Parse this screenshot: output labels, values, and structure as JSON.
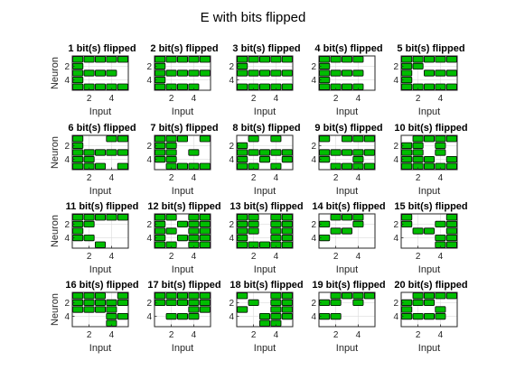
{
  "figure": {
    "title": "E with bits flipped"
  },
  "colors": {
    "cell_fill": "#00bd00",
    "cell_stroke": "#000000",
    "background": "#ffffff"
  },
  "chart_data": [
    {
      "type": "heatmap",
      "title": "1 bit(s) flipped",
      "xlabel": "Input",
      "ylabel": "Neuron",
      "x_ticks": [
        2,
        4
      ],
      "y_ticks": [
        2,
        4
      ],
      "rows": 5,
      "cols": 5,
      "cells": [
        [
          1,
          1,
          1,
          1,
          1
        ],
        [
          1,
          0,
          0,
          0,
          0
        ],
        [
          1,
          1,
          1,
          1,
          0
        ],
        [
          1,
          0,
          0,
          0,
          0
        ],
        [
          1,
          1,
          1,
          1,
          1
        ]
      ]
    },
    {
      "type": "heatmap",
      "title": "2 bit(s) flipped",
      "xlabel": "Input",
      "ylabel": "",
      "x_ticks": [
        2,
        4
      ],
      "y_ticks": [
        2,
        4
      ],
      "rows": 5,
      "cols": 5,
      "cells": [
        [
          1,
          1,
          1,
          1,
          1
        ],
        [
          1,
          0,
          0,
          0,
          0
        ],
        [
          1,
          1,
          1,
          1,
          1
        ],
        [
          1,
          0,
          0,
          0,
          0
        ],
        [
          1,
          1,
          1,
          1,
          0
        ]
      ]
    },
    {
      "type": "heatmap",
      "title": "3 bit(s) flipped",
      "xlabel": "Input",
      "ylabel": "",
      "x_ticks": [
        2,
        4
      ],
      "y_ticks": [
        2,
        4
      ],
      "rows": 5,
      "cols": 5,
      "cells": [
        [
          1,
          1,
          1,
          1,
          1
        ],
        [
          1,
          0,
          0,
          0,
          0
        ],
        [
          1,
          1,
          1,
          1,
          1
        ],
        [
          0,
          0,
          0,
          0,
          0
        ],
        [
          1,
          1,
          1,
          1,
          1
        ]
      ]
    },
    {
      "type": "heatmap",
      "title": "4 bit(s) flipped",
      "xlabel": "Input",
      "ylabel": "",
      "x_ticks": [
        2,
        4
      ],
      "y_ticks": [
        2,
        4
      ],
      "rows": 5,
      "cols": 5,
      "cells": [
        [
          1,
          1,
          1,
          1,
          0
        ],
        [
          1,
          0,
          0,
          0,
          0
        ],
        [
          1,
          1,
          1,
          1,
          0
        ],
        [
          1,
          0,
          0,
          0,
          0
        ],
        [
          1,
          1,
          1,
          1,
          0
        ]
      ]
    },
    {
      "type": "heatmap",
      "title": "5 bit(s) flipped",
      "xlabel": "Input",
      "ylabel": "",
      "x_ticks": [
        2,
        4
      ],
      "y_ticks": [
        2,
        4
      ],
      "rows": 5,
      "cols": 5,
      "cells": [
        [
          1,
          1,
          1,
          1,
          1
        ],
        [
          1,
          1,
          0,
          0,
          0
        ],
        [
          1,
          0,
          1,
          1,
          1
        ],
        [
          1,
          0,
          0,
          0,
          0
        ],
        [
          1,
          1,
          1,
          1,
          1
        ]
      ]
    },
    {
      "type": "heatmap",
      "title": "6 bit(s) flipped",
      "xlabel": "Input",
      "ylabel": "Neuron",
      "x_ticks": [
        2,
        4
      ],
      "y_ticks": [
        2,
        4
      ],
      "rows": 5,
      "cols": 5,
      "cells": [
        [
          1,
          0,
          0,
          1,
          1
        ],
        [
          1,
          0,
          0,
          0,
          0
        ],
        [
          1,
          1,
          1,
          1,
          1
        ],
        [
          1,
          1,
          0,
          0,
          0
        ],
        [
          1,
          1,
          1,
          0,
          1
        ]
      ]
    },
    {
      "type": "heatmap",
      "title": "7 bit(s) flipped",
      "xlabel": "Input",
      "ylabel": "",
      "x_ticks": [
        2,
        4
      ],
      "y_ticks": [
        2,
        4
      ],
      "rows": 5,
      "cols": 5,
      "cells": [
        [
          1,
          1,
          1,
          0,
          1
        ],
        [
          1,
          1,
          0,
          0,
          0
        ],
        [
          1,
          1,
          0,
          1,
          0
        ],
        [
          1,
          1,
          0,
          0,
          0
        ],
        [
          0,
          1,
          1,
          1,
          1
        ]
      ]
    },
    {
      "type": "heatmap",
      "title": "8 bit(s) flipped",
      "xlabel": "Input",
      "ylabel": "",
      "x_ticks": [
        2,
        4
      ],
      "y_ticks": [
        2,
        4
      ],
      "rows": 5,
      "cols": 5,
      "cells": [
        [
          0,
          1,
          0,
          1,
          0
        ],
        [
          1,
          0,
          0,
          0,
          0
        ],
        [
          1,
          1,
          1,
          1,
          1
        ],
        [
          1,
          0,
          1,
          0,
          1
        ],
        [
          1,
          1,
          0,
          1,
          0
        ]
      ]
    },
    {
      "type": "heatmap",
      "title": "9 bit(s) flipped",
      "xlabel": "Input",
      "ylabel": "",
      "x_ticks": [
        2,
        4
      ],
      "y_ticks": [
        2,
        4
      ],
      "rows": 5,
      "cols": 5,
      "cells": [
        [
          1,
          0,
          1,
          1,
          1
        ],
        [
          0,
          0,
          0,
          0,
          0
        ],
        [
          1,
          1,
          1,
          1,
          1
        ],
        [
          1,
          0,
          0,
          1,
          0
        ],
        [
          0,
          1,
          1,
          1,
          1
        ]
      ]
    },
    {
      "type": "heatmap",
      "title": "10 bit(s) flipped",
      "xlabel": "Input",
      "ylabel": "",
      "x_ticks": [
        2,
        4
      ],
      "y_ticks": [
        2,
        4
      ],
      "rows": 5,
      "cols": 5,
      "cells": [
        [
          0,
          1,
          1,
          1,
          1
        ],
        [
          1,
          1,
          0,
          1,
          0
        ],
        [
          1,
          1,
          0,
          1,
          0
        ],
        [
          1,
          1,
          1,
          0,
          1
        ],
        [
          1,
          1,
          1,
          1,
          1
        ]
      ]
    },
    {
      "type": "heatmap",
      "title": "11 bit(s) flipped",
      "xlabel": "Input",
      "ylabel": "Neuron",
      "x_ticks": [
        2,
        4
      ],
      "y_ticks": [
        2,
        4
      ],
      "rows": 5,
      "cols": 5,
      "cells": [
        [
          1,
          1,
          1,
          1,
          1
        ],
        [
          1,
          1,
          0,
          0,
          0
        ],
        [
          1,
          0,
          0,
          0,
          0
        ],
        [
          1,
          1,
          0,
          0,
          0
        ],
        [
          0,
          0,
          1,
          0,
          0
        ]
      ]
    },
    {
      "type": "heatmap",
      "title": "12 bit(s) flipped",
      "xlabel": "Input",
      "ylabel": "",
      "x_ticks": [
        2,
        4
      ],
      "y_ticks": [
        2,
        4
      ],
      "rows": 5,
      "cols": 5,
      "cells": [
        [
          1,
          1,
          0,
          1,
          1
        ],
        [
          1,
          0,
          1,
          1,
          1
        ],
        [
          1,
          1,
          0,
          1,
          1
        ],
        [
          1,
          0,
          1,
          1,
          1
        ],
        [
          1,
          1,
          0,
          1,
          1
        ]
      ]
    },
    {
      "type": "heatmap",
      "title": "13 bit(s) flipped",
      "xlabel": "Input",
      "ylabel": "",
      "x_ticks": [
        2,
        4
      ],
      "y_ticks": [
        2,
        4
      ],
      "rows": 5,
      "cols": 5,
      "cells": [
        [
          1,
          1,
          0,
          1,
          1
        ],
        [
          1,
          1,
          0,
          1,
          1
        ],
        [
          1,
          1,
          0,
          1,
          1
        ],
        [
          1,
          0,
          0,
          1,
          1
        ],
        [
          1,
          1,
          1,
          1,
          1
        ]
      ]
    },
    {
      "type": "heatmap",
      "title": "14 bit(s) flipped",
      "xlabel": "Input",
      "ylabel": "",
      "x_ticks": [
        2,
        4
      ],
      "y_ticks": [
        2,
        4
      ],
      "rows": 5,
      "cols": 5,
      "cells": [
        [
          0,
          1,
          1,
          1,
          0
        ],
        [
          1,
          0,
          0,
          1,
          0
        ],
        [
          0,
          1,
          1,
          0,
          0
        ],
        [
          1,
          0,
          0,
          0,
          0
        ],
        [
          0,
          0,
          0,
          0,
          0
        ]
      ]
    },
    {
      "type": "heatmap",
      "title": "15 bit(s) flipped",
      "xlabel": "Input",
      "ylabel": "",
      "x_ticks": [
        2,
        4
      ],
      "y_ticks": [
        2,
        4
      ],
      "rows": 5,
      "cols": 5,
      "cells": [
        [
          1,
          0,
          0,
          0,
          1
        ],
        [
          1,
          0,
          0,
          1,
          1
        ],
        [
          0,
          1,
          1,
          0,
          1
        ],
        [
          0,
          0,
          0,
          1,
          1
        ],
        [
          0,
          0,
          0,
          1,
          1
        ]
      ]
    },
    {
      "type": "heatmap",
      "title": "16 bit(s) flipped",
      "xlabel": "Input",
      "ylabel": "Neuron",
      "x_ticks": [
        2,
        4
      ],
      "y_ticks": [
        2,
        4
      ],
      "rows": 5,
      "cols": 5,
      "cells": [
        [
          1,
          1,
          1,
          0,
          1
        ],
        [
          1,
          1,
          1,
          1,
          1
        ],
        [
          1,
          1,
          1,
          1,
          0
        ],
        [
          0,
          0,
          0,
          1,
          1
        ],
        [
          0,
          0,
          0,
          1,
          0
        ]
      ]
    },
    {
      "type": "heatmap",
      "title": "17 bit(s) flipped",
      "xlabel": "Input",
      "ylabel": "",
      "x_ticks": [
        2,
        4
      ],
      "y_ticks": [
        2,
        4
      ],
      "rows": 5,
      "cols": 5,
      "cells": [
        [
          1,
          1,
          1,
          1,
          1
        ],
        [
          1,
          1,
          1,
          1,
          1
        ],
        [
          0,
          0,
          0,
          1,
          1
        ],
        [
          0,
          1,
          1,
          1,
          0
        ],
        [
          0,
          0,
          0,
          0,
          0
        ]
      ]
    },
    {
      "type": "heatmap",
      "title": "18 bit(s) flipped",
      "xlabel": "Input",
      "ylabel": "",
      "x_ticks": [
        2,
        4
      ],
      "y_ticks": [
        2,
        4
      ],
      "rows": 5,
      "cols": 5,
      "cells": [
        [
          1,
          0,
          0,
          1,
          1
        ],
        [
          0,
          1,
          0,
          1,
          1
        ],
        [
          1,
          0,
          0,
          1,
          1
        ],
        [
          0,
          0,
          1,
          1,
          1
        ],
        [
          0,
          0,
          1,
          1,
          0
        ]
      ]
    },
    {
      "type": "heatmap",
      "title": "19 bit(s) flipped",
      "xlabel": "Input",
      "ylabel": "",
      "x_ticks": [
        2,
        4
      ],
      "y_ticks": [
        2,
        4
      ],
      "rows": 5,
      "cols": 5,
      "cells": [
        [
          0,
          1,
          1,
          1,
          1
        ],
        [
          1,
          1,
          0,
          1,
          0
        ],
        [
          0,
          0,
          0,
          0,
          0
        ],
        [
          1,
          1,
          0,
          0,
          0
        ],
        [
          0,
          0,
          0,
          0,
          0
        ]
      ]
    },
    {
      "type": "heatmap",
      "title": "20 bit(s) flipped",
      "xlabel": "Input",
      "ylabel": "",
      "x_ticks": [
        2,
        4
      ],
      "y_ticks": [
        2,
        4
      ],
      "rows": 5,
      "cols": 5,
      "cells": [
        [
          0,
          1,
          1,
          1,
          1
        ],
        [
          1,
          1,
          1,
          0,
          0
        ],
        [
          1,
          0,
          0,
          1,
          0
        ],
        [
          1,
          1,
          1,
          1,
          0
        ],
        [
          0,
          0,
          0,
          0,
          0
        ]
      ]
    }
  ]
}
